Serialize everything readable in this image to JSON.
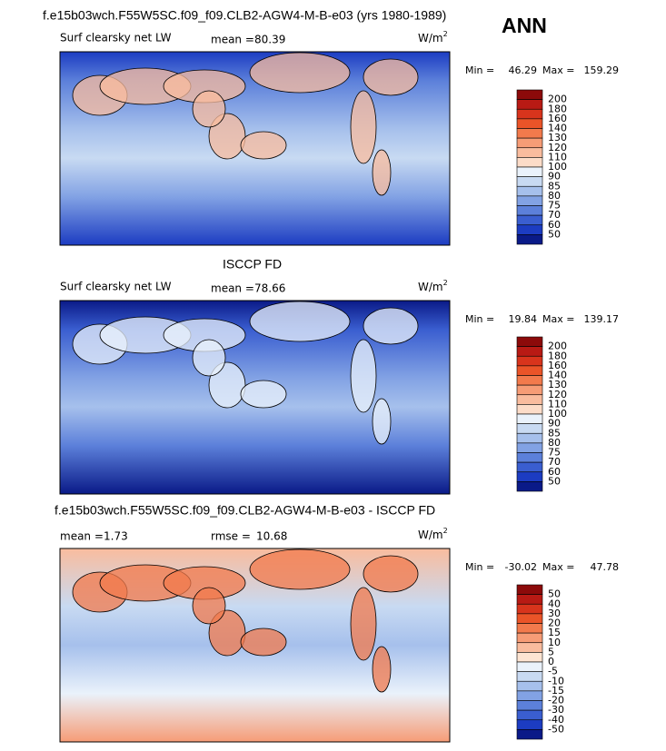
{
  "header": {
    "title": "f.e15b03wch.F55W5SC.f09_f09.CLB2-AGW4-M-B-e03 (yrs 1980-1989)",
    "season": "ANN"
  },
  "panels": [
    {
      "label": "Surf clearsky net LW",
      "mean_label": "mean =",
      "mean": 80.39,
      "units_base": "W/m",
      "units_exp": "2",
      "min_label": "Min =",
      "min": 46.29,
      "max_label": "Max =",
      "max": 159.29,
      "colorbar": {
        "levels": [
          200,
          180,
          160,
          140,
          130,
          120,
          110,
          100,
          90,
          85,
          80,
          75,
          70,
          60,
          50
        ],
        "colors": [
          "#8c0a0a",
          "#b81a14",
          "#d8341c",
          "#ea5428",
          "#f27a4c",
          "#f69c76",
          "#f9bc9e",
          "#fcdcc8",
          "#eaf2fb",
          "#c8daf2",
          "#a6c0ec",
          "#82a2e4",
          "#5c80da",
          "#3a5ed0",
          "#1c3cc2",
          "#0a1a88"
        ]
      }
    },
    {
      "title": "ISCCP FD",
      "label": "Surf clearsky net LW",
      "mean_label": "mean =",
      "mean": 78.66,
      "units_base": "W/m",
      "units_exp": "2",
      "min_label": "Min =",
      "min": 19.84,
      "max_label": "Max =",
      "max": 139.17,
      "colorbar": {
        "levels": [
          200,
          180,
          160,
          140,
          130,
          120,
          110,
          100,
          90,
          85,
          80,
          75,
          70,
          60,
          50
        ],
        "colors": [
          "#8c0a0a",
          "#b81a14",
          "#d8341c",
          "#ea5428",
          "#f27a4c",
          "#f69c76",
          "#f9bc9e",
          "#fcdcc8",
          "#eaf2fb",
          "#c8daf2",
          "#a6c0ec",
          "#82a2e4",
          "#5c80da",
          "#3a5ed0",
          "#1c3cc2",
          "#0a1a88"
        ]
      }
    },
    {
      "title": "f.e15b03wch.F55W5SC.f09_f09.CLB2-AGW4-M-B-e03 - ISCCP FD",
      "mean_label": "mean =",
      "mean": 1.73,
      "rmse_label": "rmse =",
      "rmse": 10.68,
      "units_base": "W/m",
      "units_exp": "2",
      "min_label": "Min =",
      "min": -30.02,
      "max_label": "Max =",
      "max": 47.78,
      "colorbar": {
        "levels": [
          50,
          40,
          30,
          20,
          15,
          10,
          5,
          0,
          -5,
          -10,
          -15,
          -20,
          -30,
          -40,
          -50
        ],
        "colors": [
          "#8c0a0a",
          "#b81a14",
          "#d8341c",
          "#ea5428",
          "#f27a4c",
          "#f69c76",
          "#f9bc9e",
          "#fde4d2",
          "#eaf2fb",
          "#c8daf2",
          "#a6c0ec",
          "#82a2e4",
          "#5c80da",
          "#3a5ed0",
          "#1c3cc2",
          "#0a1a88"
        ]
      }
    }
  ]
}
